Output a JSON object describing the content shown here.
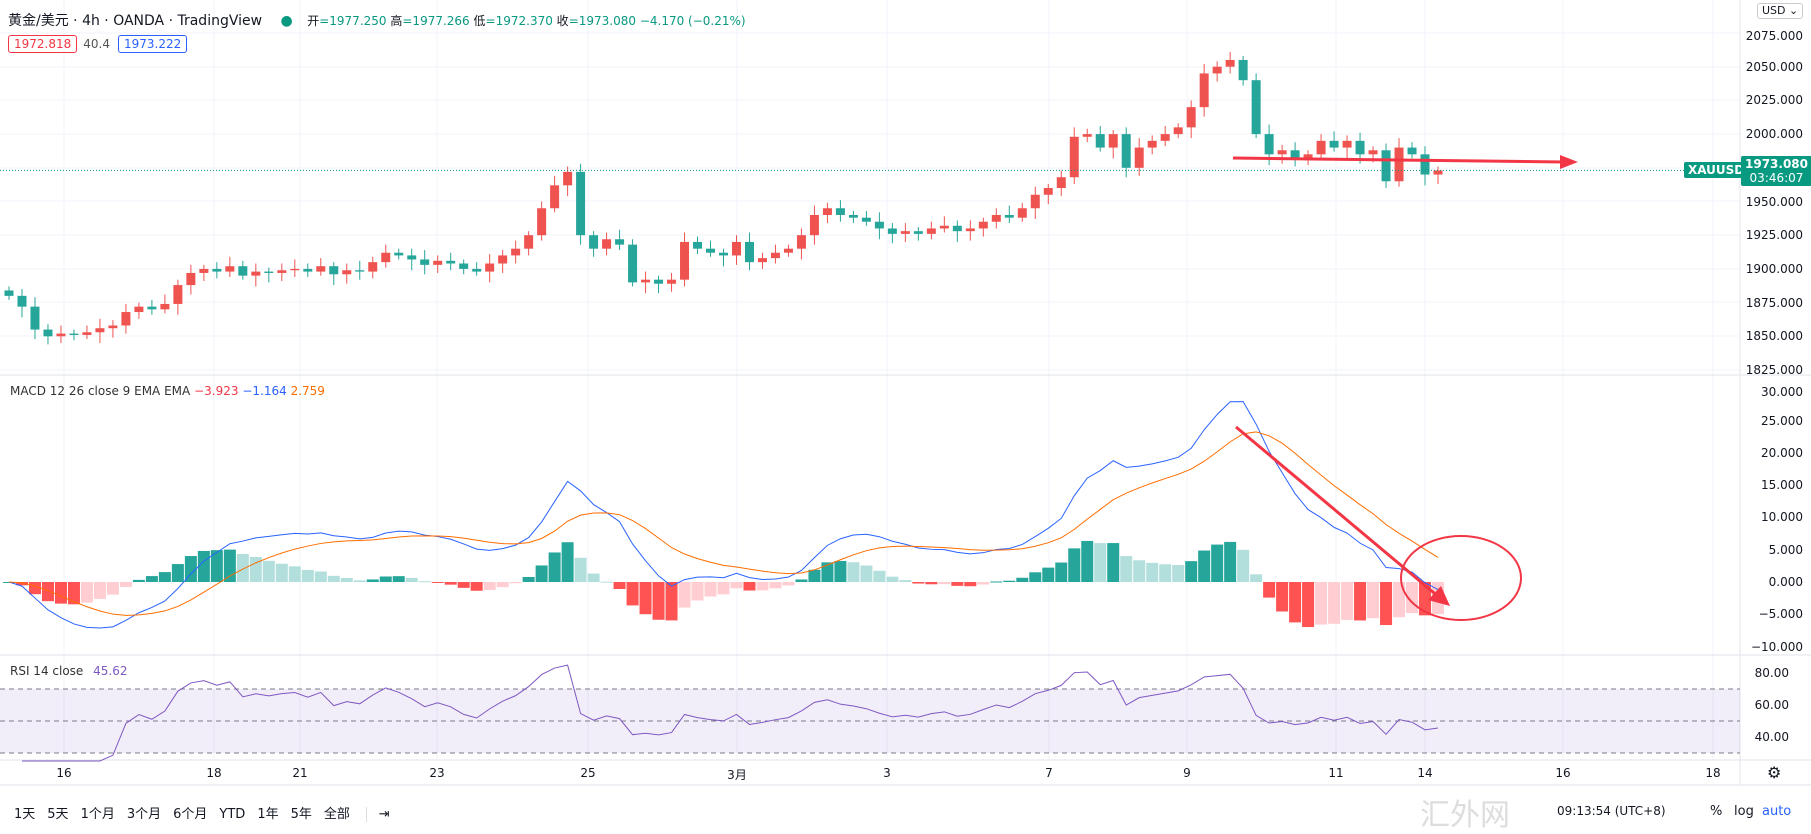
{
  "header": {
    "symbol": "黄金/美元 · 4h · OANDA · TradingView",
    "open_label": "开",
    "open": "=1977.250",
    "high_label": "高",
    "high": "=1977.266",
    "low_label": "低",
    "low": "=1972.370",
    "close_label": "收",
    "close": "=1973.080",
    "change": "−4.170 (−0.21%)",
    "bid": "1972.818",
    "spread": "40.4",
    "ask": "1973.222"
  },
  "currency": "USD",
  "price_axis": [
    "2075.000",
    "2050.000",
    "2025.000",
    "2000.000",
    "1950.000",
    "1925.000",
    "1900.000",
    "1875.000",
    "1850.000",
    "1825.000"
  ],
  "price_tag": {
    "symbol": "XAUUSD",
    "price": "1973.080",
    "countdown": "03:46:07"
  },
  "macd": {
    "label": "MACD 12 26 close 9 EMA EMA",
    "hist": "−3.923",
    "macd": "−1.164",
    "signal": "2.759",
    "axis": [
      "30.000",
      "25.000",
      "20.000",
      "15.000",
      "10.000",
      "5.000",
      "0.000",
      "−5.000",
      "−10.000"
    ]
  },
  "rsi": {
    "label": "RSI 14 close",
    "value": "45.62",
    "axis": [
      "80.00",
      "60.00",
      "40.00"
    ]
  },
  "time_axis": [
    "16",
    "18",
    "21",
    "23",
    "25",
    "3月",
    "3",
    "7",
    "9",
    "11",
    "14",
    "16",
    "18"
  ],
  "toolbar": {
    "ranges": [
      "1天",
      "5天",
      "1个月",
      "3个月",
      "6个月",
      "YTD",
      "1年",
      "5年",
      "全部"
    ],
    "clock": "09:13:54 (UTC+8)",
    "percent": "%",
    "log": "log",
    "auto": "auto"
  },
  "watermark": "汇外网",
  "colors": {
    "up": "#ef5350",
    "down": "#26a69a",
    "macd": "#2962ff",
    "signal": "#ff6d00",
    "rsi": "#7e57c2",
    "annot": "#f23645"
  },
  "chart_data": {
    "type": "candlestick",
    "ylim": [
      1825,
      2075
    ],
    "closes": [
      1880,
      1872,
      1855,
      1850,
      1852,
      1851,
      1853,
      1856,
      1858,
      1868,
      1872,
      1870,
      1874,
      1888,
      1897,
      1900,
      1898,
      1902,
      1895,
      1898,
      1897,
      1899,
      1900,
      1898,
      1902,
      1896,
      1899,
      1898,
      1905,
      1912,
      1910,
      1907,
      1903,
      1906,
      1904,
      1900,
      1898,
      1904,
      1910,
      1915,
      1925,
      1945,
      1962,
      1972,
      1925,
      1915,
      1922,
      1918,
      1890,
      1892,
      1889,
      1892,
      1920,
      1915,
      1912,
      1910,
      1920,
      1905,
      1908,
      1912,
      1915,
      1925,
      1940,
      1945,
      1940,
      1938,
      1935,
      1930,
      1926,
      1928,
      1926,
      1930,
      1932,
      1928,
      1930,
      1935,
      1940,
      1938,
      1945,
      1955,
      1960,
      1968,
      1998,
      2000,
      1990,
      2000,
      1975,
      1990,
      1995,
      2000,
      2005,
      2020,
      2045,
      2050,
      2055,
      2040,
      2000,
      1985,
      1988,
      1982,
      1985,
      1995,
      1990,
      1995,
      1985,
      1988,
      1965,
      1990,
      1985,
      1970,
      1973
    ]
  }
}
